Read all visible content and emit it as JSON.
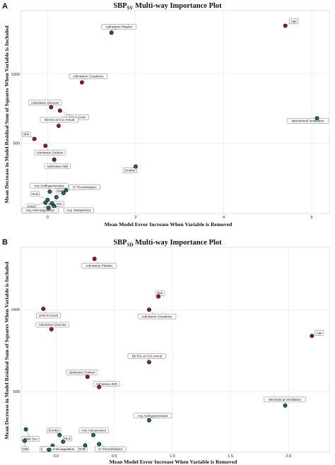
{
  "colors": {
    "red_dot": "#9b1c1c",
    "teal_dot": "#1e6b6b"
  },
  "chart_data": [
    {
      "type": "scatter",
      "panel_letter": "A",
      "title_main": "SBP",
      "title_sub": "SV",
      "title_rest": " Multi-way Importance Plot",
      "xlabel": "Mean Model Error Increase When Variable is Removed",
      "ylabel": "Mean Decrease in Model Residual Sum of Squares When Variable is Included",
      "xlim": [
        -0.6,
        6.4
      ],
      "ylim": [
        -10,
        1460
      ],
      "xticks": [
        0,
        2,
        4,
        6
      ],
      "yticks": [
        500,
        1000
      ],
      "grid": true,
      "points": [
        {
          "label": "Age",
          "x": 5.4,
          "y": 1350,
          "group": "red"
        },
        {
          "label": "Admission Platelet",
          "x": 1.45,
          "y": 1300,
          "group": "red"
        },
        {
          "label": "Admission Creatinine",
          "x": 0.78,
          "y": 940,
          "group": "red"
        },
        {
          "label": "Mechanical Ventilation",
          "x": 6.12,
          "y": 680,
          "group": "teal"
        },
        {
          "label": "Admission Glucose",
          "x": 0.08,
          "y": 760,
          "group": "red"
        },
        {
          "label": "LKW to Groin",
          "x": 0.28,
          "y": 735,
          "group": "red"
        },
        {
          "label": "NIHSS at ICU Arrival",
          "x": 0.25,
          "y": 625,
          "group": "red"
        },
        {
          "label": "BMI",
          "x": -0.3,
          "y": 530,
          "group": "red"
        },
        {
          "label": "Admission Sodium",
          "x": -0.05,
          "y": 480,
          "group": "red"
        },
        {
          "label": "Admission INR",
          "x": 0.15,
          "y": 380,
          "group": "red"
        },
        {
          "label": "Smoker",
          "x": 2.0,
          "y": 330,
          "group": "teal"
        },
        {
          "label": "IV Thrombolytics",
          "x": 0.42,
          "y": 158,
          "group": "teal"
        },
        {
          "label": "Any Antihypertensive",
          "x": 0.05,
          "y": 148,
          "group": "teal"
        },
        {
          "label": "DM",
          "x": 0.36,
          "y": 138,
          "group": "teal"
        },
        {
          "label": "Male Sex",
          "x": 0.2,
          "y": 108,
          "group": "teal"
        },
        {
          "label": "HLD",
          "x": 0.0,
          "y": 88,
          "group": "teal"
        },
        {
          "label": "HTN",
          "x": -0.05,
          "y": 68,
          "group": "teal"
        },
        {
          "label": "AFIB",
          "x": 0.1,
          "y": 62,
          "group": "teal"
        },
        {
          "label": "Any Vasopressor",
          "x": 0.15,
          "y": 42,
          "group": "teal"
        },
        {
          "label": "Any Anticoagulation",
          "x": 0.02,
          "y": 30,
          "group": "teal"
        }
      ]
    },
    {
      "type": "scatter",
      "panel_letter": "B",
      "title_main": "SBP",
      "title_sub": "SD",
      "title_rest": " Multi-way Importance Plot",
      "xlabel": "Mean Model Error Increase When Variable is Removed",
      "ylabel": "Mean Decrease in Model Residual Sum of Squares When Variable is Included",
      "xlim": [
        -0.3,
        2.35
      ],
      "ylim": [
        130,
        1380
      ],
      "xticks": [
        0.0,
        0.5,
        1.0,
        1.5,
        2.0
      ],
      "yticks": [
        500,
        1000
      ],
      "grid": true,
      "points": [
        {
          "label": "Admission Platelet",
          "x": 0.33,
          "y": 1310,
          "group": "red"
        },
        {
          "label": "BMI",
          "x": 0.88,
          "y": 1080,
          "group": "red"
        },
        {
          "label": "LKW to Groin",
          "x": -0.11,
          "y": 1005,
          "group": "red"
        },
        {
          "label": "Admission Creatinine",
          "x": 0.8,
          "y": 1000,
          "group": "red"
        },
        {
          "label": "Admission Glucose",
          "x": -0.04,
          "y": 880,
          "group": "red"
        },
        {
          "label": "Age",
          "x": 2.2,
          "y": 840,
          "group": "red"
        },
        {
          "label": "NIHSS at ICU Arrival",
          "x": 0.8,
          "y": 680,
          "group": "red"
        },
        {
          "label": "Admission Sodium",
          "x": 0.27,
          "y": 590,
          "group": "red"
        },
        {
          "label": "Admission INR",
          "x": 0.37,
          "y": 528,
          "group": "red"
        },
        {
          "label": "Mechanical Ventilation",
          "x": 1.97,
          "y": 415,
          "group": "teal"
        },
        {
          "label": "Any Antihypertensive",
          "x": 0.8,
          "y": 325,
          "group": "teal"
        },
        {
          "label": "Male Sex",
          "x": -0.26,
          "y": 270,
          "group": "teal"
        },
        {
          "label": "Smoker",
          "x": 0.03,
          "y": 235,
          "group": "teal"
        },
        {
          "label": "Any Vasopressor",
          "x": 0.32,
          "y": 235,
          "group": "teal"
        },
        {
          "label": "DM",
          "x": -0.27,
          "y": 200,
          "group": "teal"
        },
        {
          "label": "HLD",
          "x": 0.06,
          "y": 195,
          "group": "teal"
        },
        {
          "label": "IV Thrombolytics",
          "x": 0.37,
          "y": 180,
          "group": "teal"
        },
        {
          "label": "HTN",
          "x": -0.03,
          "y": 170,
          "group": "teal"
        },
        {
          "label": "AFIB",
          "x": 0.25,
          "y": 172,
          "group": "teal"
        },
        {
          "label": "Any Anticoagulation",
          "x": -0.06,
          "y": 145,
          "group": "teal"
        }
      ]
    }
  ]
}
